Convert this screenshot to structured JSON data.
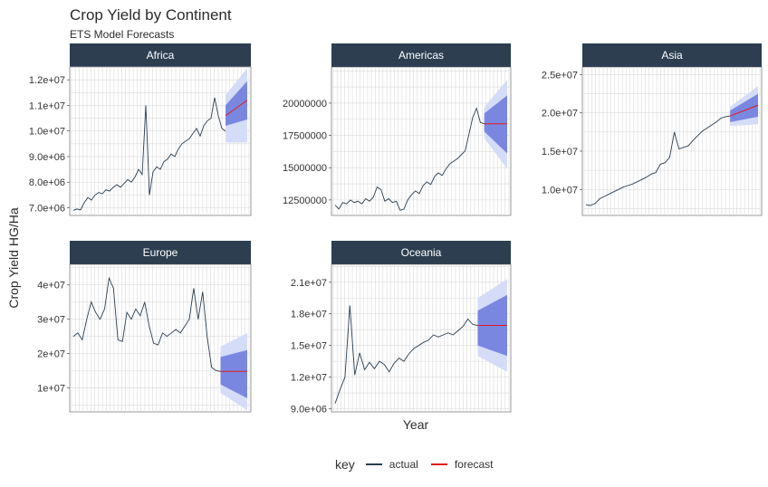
{
  "title": "Crop Yield by Continent",
  "subtitle": "ETS Model Forecasts",
  "xlabel": "Year",
  "ylabel": "Crop Yield HG/Ha",
  "legend": {
    "title": "key",
    "entries": [
      {
        "label": "actual",
        "color": "#2c3e50"
      },
      {
        "label": "forecast",
        "color": "#e31a1c"
      }
    ]
  },
  "colors": {
    "strip": "#2c3e50",
    "strip_text": "#ffffff",
    "band80": "#7a87e0",
    "band95": "#d5dcf8",
    "grid": "#d9d9d9",
    "actual": "#2c3e50",
    "forecast": "#e31a1c"
  },
  "chart_data": {
    "type": "line",
    "facets": [
      {
        "name": "Africa",
        "ylim": [
          6700000.0,
          12500000.0
        ],
        "ticks": [
          7000000.0,
          8000000.0,
          9000000.0,
          10000000.0,
          11000000.0,
          12000000.0
        ],
        "tick_labels": [
          "7.0e+06",
          "8.0e+06",
          "9.0e+06",
          "1.0e+07",
          "1.1e+07",
          "1.2e+07"
        ],
        "actual": [
          6900000.0,
          6950000.0,
          6920000.0,
          7200000.0,
          7400000.0,
          7300000.0,
          7500000.0,
          7600000.0,
          7550000.0,
          7700000.0,
          7650000.0,
          7800000.0,
          7900000.0,
          7800000.0,
          7950000.0,
          8100000.0,
          8000000.0,
          8200000.0,
          8500000.0,
          8300000.0,
          11000000.0,
          7500000.0,
          8400000.0,
          8600000.0,
          8500000.0,
          8800000.0,
          8900000.0,
          9100000.0,
          9000000.0,
          9300000.0,
          9500000.0,
          9600000.0,
          9700000.0,
          9900000.0,
          10100000.0,
          9800000.0,
          10200000.0,
          10400000.0,
          10500000.0,
          11300000.0,
          10600000.0,
          10100000.0,
          10000000.0
        ],
        "forecast_center": [
          10600000.0,
          11200000.0
        ],
        "band80": {
          "lower": [
            10200000.0,
            10450000.0
          ],
          "upper": [
            11000000.0,
            11950000.0
          ]
        },
        "band95": {
          "lower": [
            9550000.0,
            9550000.0
          ],
          "upper": [
            11400000.0,
            12450000.0
          ]
        }
      },
      {
        "name": "Americas",
        "ylim": [
          11300000,
          22800000
        ],
        "ticks": [
          12500000,
          15000000,
          17500000,
          20000000
        ],
        "tick_labels": [
          "12500000",
          "15000000",
          "17500000",
          "20000000"
        ],
        "actual": [
          12100000.0,
          11800000.0,
          12300000.0,
          12200000.0,
          12500000.0,
          12300000.0,
          12400000.0,
          12200000.0,
          12600000.0,
          12400000.0,
          12700000.0,
          13500000.0,
          13300000.0,
          12400000.0,
          12600000.0,
          12300000.0,
          12400000.0,
          11700000.0,
          11800000.0,
          12500000.0,
          12900000.0,
          13200000.0,
          13000000.0,
          13600000.0,
          13900000.0,
          13700000.0,
          14300000.0,
          14600000.0,
          14400000.0,
          14900000.0,
          15300000.0,
          15500000.0,
          15700000.0,
          16000000.0,
          16300000.0,
          17600000.0,
          18900000.0,
          19600000.0,
          18500000.0,
          18400000.0
        ],
        "forecast_center": [
          18400000.0,
          18400000.0
        ],
        "band80": {
          "lower": [
            17800000.0,
            16100000.0
          ],
          "upper": [
            19200000.0,
            20600000.0
          ]
        },
        "band95": {
          "lower": [
            17300000.0,
            14900000.0
          ],
          "upper": [
            19700000.0,
            21800000.0
          ]
        }
      },
      {
        "name": "Asia",
        "ylim": [
          6600000.0,
          26000000.0
        ],
        "ticks": [
          10000000.0,
          15000000.0,
          20000000.0,
          25000000.0
        ],
        "tick_labels": [
          "1.0e+07",
          "1.5e+07",
          "2.0e+07",
          "2.5e+07"
        ],
        "actual": [
          8000000.0,
          7900000.0,
          8200000.0,
          8800000.0,
          9100000.0,
          9400000.0,
          9700000.0,
          10000000.0,
          10300000.0,
          10500000.0,
          10700000.0,
          11000000.0,
          11300000.0,
          11600000.0,
          12000000.0,
          12200000.0,
          13300000.0,
          13500000.0,
          14200000.0,
          17500000.0,
          15300000.0,
          15500000.0,
          15700000.0,
          16400000.0,
          17000000.0,
          17600000.0,
          18000000.0,
          18400000.0,
          18800000.0,
          19300000.0,
          19500000.0,
          19600000.0
        ],
        "forecast_center": [
          19600000.0,
          21000000.0
        ],
        "band80": {
          "lower": [
            18800000.0,
            19500000.0
          ],
          "upper": [
            20300000.0,
            22500000.0
          ]
        },
        "band95": {
          "lower": [
            18300000.0,
            18500000.0
          ],
          "upper": [
            20800000.0,
            23500000.0
          ]
        }
      },
      {
        "name": "Europe",
        "ylim": [
          3000000.0,
          46000000.0
        ],
        "ticks": [
          10000000.0,
          20000000.0,
          30000000.0,
          40000000.0
        ],
        "tick_labels": [
          "1e+07",
          "2e+07",
          "3e+07",
          "4e+07"
        ],
        "actual": [
          25000000.0,
          26000000.0,
          24000000.0,
          30000000.0,
          35000000.0,
          32000000.0,
          30000000.0,
          33000000.0,
          42000000.0,
          39000000.0,
          24000000.0,
          23500000.0,
          32000000.0,
          30000000.0,
          33000000.0,
          31000000.0,
          35000000.0,
          28000000.0,
          23000000.0,
          22500000.0,
          26000000.0,
          25000000.0,
          26000000.0,
          27000000.0,
          26000000.0,
          28000000.0,
          30000000.0,
          39000000.0,
          30000000.0,
          38000000.0,
          25000000.0,
          16000000.0,
          15000000.0,
          14800000.0
        ],
        "forecast_center": [
          14800000.0,
          14800000.0
        ],
        "band80": {
          "lower": [
            11000000.0,
            7000000.0
          ],
          "upper": [
            19000000.0,
            21000000.0
          ]
        },
        "band95": {
          "lower": [
            8500000.0,
            3500000.0
          ],
          "upper": [
            22000000.0,
            26000000.0
          ]
        }
      },
      {
        "name": "Oceania",
        "ylim": [
          8700000.0,
          22700000.0
        ],
        "ticks": [
          9000000.0,
          12000000.0,
          15000000.0,
          18000000.0,
          21000000.0
        ],
        "tick_labels": [
          "9.0e+06",
          "1.2e+07",
          "1.5e+07",
          "1.8e+07",
          "2.1e+07"
        ],
        "actual": [
          9500000.0,
          10800000.0,
          12000000.0,
          18800000.0,
          12200000.0,
          14300000.0,
          12700000.0,
          13400000.0,
          12800000.0,
          13500000.0,
          13200000.0,
          12500000.0,
          13300000.0,
          13800000.0,
          13500000.0,
          14200000.0,
          14700000.0,
          15000000.0,
          15300000.0,
          15500000.0,
          16000000.0,
          15800000.0,
          16000000.0,
          16200000.0,
          16000000.0,
          16400000.0,
          16800000.0,
          17500000.0,
          17000000.0,
          16900000.0
        ],
        "forecast_center": [
          16900000.0,
          16900000.0
        ],
        "band80": {
          "lower": [
            15000000.0,
            14000000.0
          ],
          "upper": [
            18300000.0,
            19800000.0
          ]
        },
        "band95": {
          "lower": [
            14000000.0,
            12500000.0
          ],
          "upper": [
            19500000.0,
            21300000.0
          ]
        }
      }
    ]
  }
}
